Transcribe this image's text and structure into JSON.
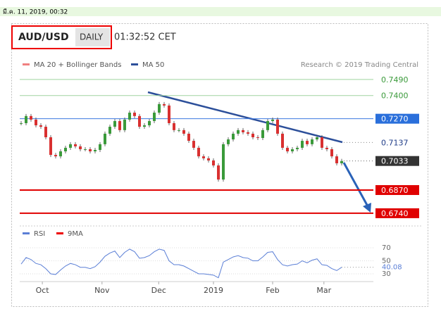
{
  "timestamp": "มี.ค. 11, 2019, 00:32",
  "header": {
    "symbol": "AUD/USD",
    "period": "DAILY",
    "time": "01:32:52 CET"
  },
  "legend": {
    "ma20": "MA 20 + Bollinger Bands",
    "ma50": "MA 50",
    "credit": "Research © 2019 Trading Central",
    "rsi": "RSI",
    "rsi_ma": "9MA"
  },
  "chart_data": [
    {
      "type": "candlestick",
      "up_color": "#3a9a3a",
      "down_color": "#d93030",
      "xlim": [
        0,
        65
      ],
      "ylim": [
        0.6712,
        0.7541
      ],
      "xticks": [
        {
          "value": 4.3,
          "label": "Oct"
        },
        {
          "value": 16.4,
          "label": "Nov"
        },
        {
          "value": 27.9,
          "label": "Dec"
        },
        {
          "value": 39,
          "label": "2019"
        },
        {
          "value": 51,
          "label": "Feb"
        },
        {
          "value": 61.4,
          "label": "Mar"
        }
      ],
      "closes": [
        0.7245,
        0.7285,
        0.7265,
        0.7233,
        0.7225,
        0.7166,
        0.7067,
        0.7059,
        0.7087,
        0.7107,
        0.7127,
        0.7115,
        0.7099,
        0.7099,
        0.7087,
        0.7095,
        0.7127,
        0.7186,
        0.7225,
        0.7257,
        0.7206,
        0.7265,
        0.7304,
        0.7285,
        0.7225,
        0.7233,
        0.7257,
        0.7304,
        0.7352,
        0.7344,
        0.7245,
        0.7206,
        0.7206,
        0.7186,
        0.7146,
        0.7107,
        0.7059,
        0.7048,
        0.7036,
        0.7008,
        0.6929,
        0.7127,
        0.7154,
        0.7186,
        0.7206,
        0.7194,
        0.7186,
        0.7166,
        0.7162,
        0.7206,
        0.7257,
        0.7265,
        0.7186,
        0.7107,
        0.7087,
        0.7099,
        0.7107,
        0.7146,
        0.7127,
        0.7154,
        0.7166,
        0.7107,
        0.7099,
        0.7059,
        0.702,
        0.7033
      ],
      "levels": [
        {
          "value": 0.749,
          "label": "0.7490",
          "color": "#9fd49f",
          "text": "#3a9a3a",
          "fill": "#ffffff",
          "style": "solid"
        },
        {
          "value": 0.74,
          "label": "0.7400",
          "color": "#9fd49f",
          "text": "#3a9a3a",
          "fill": "#ffffff",
          "style": "solid"
        },
        {
          "value": 0.727,
          "label": "0.7270",
          "color": "#3b78e0",
          "text": "#ffffff",
          "fill": "#2a6fdb",
          "style": "solid"
        },
        {
          "value": 0.7137,
          "label": "0.7137",
          "color": "#888888",
          "text": "#1f3c88",
          "fill": "#ffffff",
          "style": "dotted"
        },
        {
          "value": 0.7033,
          "label": "0.7033",
          "color": "#666666",
          "text": "#ffffff",
          "fill": "#333333",
          "style": "dotted"
        },
        {
          "value": 0.687,
          "label": "0.6870",
          "color": "#e00000",
          "text": "#ffffff",
          "fill": "#e00000",
          "style": "thick"
        },
        {
          "value": 0.674,
          "label": "0.6740",
          "color": "#e00000",
          "text": "#ffffff",
          "fill": "#e00000",
          "style": "thick"
        }
      ]
    },
    {
      "type": "line",
      "color": "#5b7fd6",
      "ylim": [
        23.5,
        77.6
      ],
      "yticks": [
        30,
        50,
        70
      ],
      "values": [
        45,
        55,
        52,
        46,
        44,
        38,
        30,
        29,
        36,
        42,
        46,
        44,
        40,
        40,
        38,
        41,
        48,
        57,
        62,
        65,
        55,
        63,
        68,
        64,
        54,
        55,
        58,
        64,
        68,
        66,
        50,
        44,
        44,
        42,
        38,
        34,
        30,
        30,
        29,
        28,
        24,
        48,
        52,
        56,
        58,
        55,
        54,
        50,
        50,
        56,
        63,
        64,
        52,
        44,
        42,
        44,
        45,
        50,
        47,
        51,
        53,
        44,
        43,
        38,
        35,
        40.08
      ]
    }
  ]
}
